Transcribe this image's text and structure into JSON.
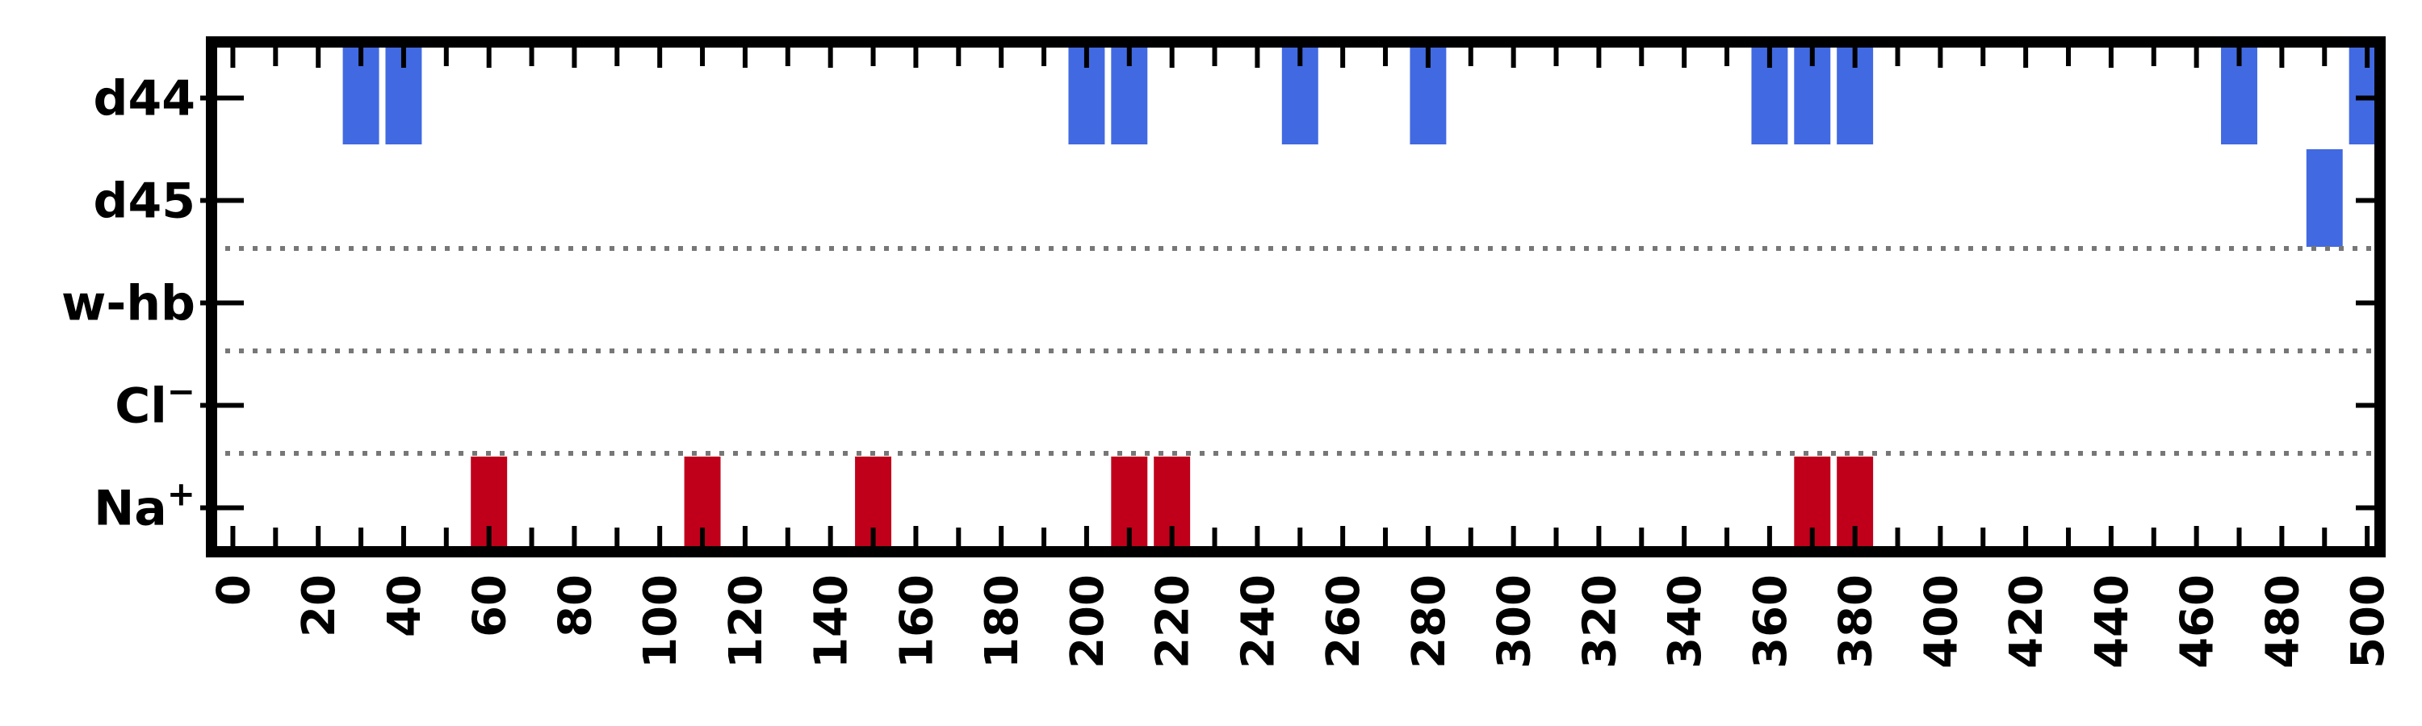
{
  "chart_data": {
    "type": "bar",
    "subtype": "event-raster",
    "xlim": [
      -5,
      503
    ],
    "bar_width": 8.5,
    "x_ticks": [
      0,
      20,
      40,
      60,
      80,
      100,
      120,
      140,
      160,
      180,
      200,
      220,
      240,
      260,
      280,
      300,
      320,
      340,
      360,
      380,
      400,
      420,
      440,
      460,
      480,
      500
    ],
    "x_minor_tick_step": 10,
    "rows": [
      {
        "label": "d44",
        "label_main": "d44",
        "label_sup": ""
      },
      {
        "label": "d45",
        "label_main": "d45",
        "label_sup": ""
      },
      {
        "label": "w-hb",
        "label_main": "w-hb",
        "label_sup": ""
      },
      {
        "label": "Cl⁻",
        "label_main": "Cl",
        "label_sup": "−"
      },
      {
        "label": "Na⁺",
        "label_main": "Na",
        "label_sup": "+"
      }
    ],
    "group_separators_after_row": [
      "d45",
      "w-hb",
      "Cl⁻"
    ],
    "series": [
      {
        "row": "d44",
        "color": "#4169e1",
        "x": [
          30,
          40,
          200,
          210,
          250,
          280,
          360,
          370,
          380,
          470,
          500
        ]
      },
      {
        "row": "d45",
        "color": "#4169e1",
        "x": [
          490
        ]
      },
      {
        "row": "w-hb",
        "color": "#4169e1",
        "x": []
      },
      {
        "row": "Cl⁻",
        "color": "#c0001a",
        "x": []
      },
      {
        "row": "Na⁺",
        "color": "#c0001a",
        "x": [
          60,
          110,
          150,
          210,
          220,
          370,
          380
        ]
      }
    ],
    "grid": false,
    "separator_style": "dotted",
    "separator_color": "#777777",
    "frame_color": "#000000"
  }
}
